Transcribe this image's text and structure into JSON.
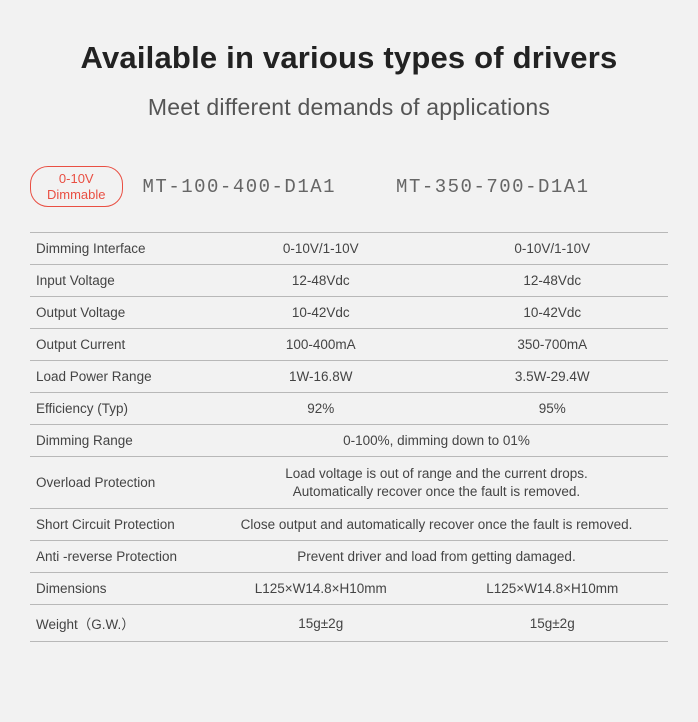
{
  "title": "Available in various types of drivers",
  "subtitle": "Meet different demands of applications",
  "badge_line1": "0-10V",
  "badge_line2": "Dimmable",
  "product1": "MT-100-400-D1A1",
  "product2": "MT-350-700-D1A1",
  "rows": {
    "dimming_interface": {
      "label": "Dimming Interface",
      "v1": "0-10V/1-10V",
      "v2": "0-10V/1-10V"
    },
    "input_voltage": {
      "label": "Input Voltage",
      "v1": "12-48Vdc",
      "v2": "12-48Vdc"
    },
    "output_voltage": {
      "label": "Output Voltage",
      "v1": "10-42Vdc",
      "v2": "10-42Vdc"
    },
    "output_current": {
      "label": "Output Current",
      "v1": "100-400mA",
      "v2": "350-700mA"
    },
    "load_power": {
      "label": "Load Power Range",
      "v1": "1W-16.8W",
      "v2": "3.5W-29.4W"
    },
    "efficiency": {
      "label": "Efficiency (Typ)",
      "v1": "92%",
      "v2": "95%"
    },
    "dimming_range": {
      "label": "Dimming Range",
      "span": "0-100%, dimming down to 01%"
    },
    "overload": {
      "label": "Overload Protection",
      "span1": "Load voltage is out of range and the current drops.",
      "span2": "Automatically recover once the fault is removed."
    },
    "short_circuit": {
      "label": "Short Circuit Protection",
      "span": "Close output and automatically recover once the fault is removed."
    },
    "anti_reverse": {
      "label": "Anti -reverse Protection",
      "span": "Prevent driver and load from getting damaged."
    },
    "dimensions": {
      "label": "Dimensions",
      "v1": "L125×W14.8×H10mm",
      "v2": "L125×W14.8×H10mm"
    },
    "weight": {
      "label": "Weight（G.W.）",
      "v1": "15g±2g",
      "v2": "15g±2g"
    }
  }
}
